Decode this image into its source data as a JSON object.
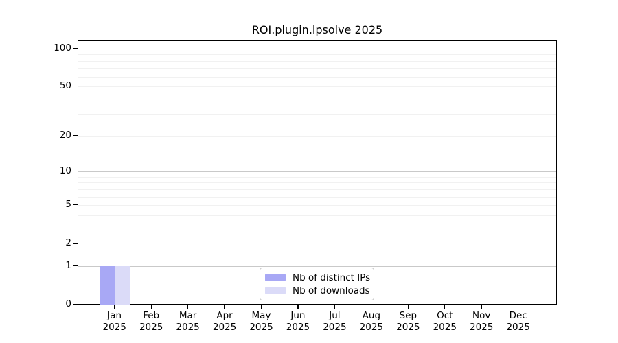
{
  "chart_data": {
    "type": "bar",
    "title": "ROI.plugin.lpsolve 2025",
    "y_scale": "log1p",
    "ylim": [
      0,
      115
    ],
    "grid": true,
    "legend_position": "bottom-center",
    "y_ticks": [
      0,
      1,
      2,
      5,
      10,
      20,
      50,
      100
    ],
    "y_gridlines_minor": [
      2,
      3,
      4,
      5,
      6,
      7,
      8,
      9,
      20,
      30,
      40,
      50,
      60,
      70,
      80,
      90
    ],
    "y_gridlines_major": [
      1,
      10,
      100
    ],
    "categories": [
      {
        "month": "Jan",
        "year": "2025"
      },
      {
        "month": "Feb",
        "year": "2025"
      },
      {
        "month": "Mar",
        "year": "2025"
      },
      {
        "month": "Apr",
        "year": "2025"
      },
      {
        "month": "May",
        "year": "2025"
      },
      {
        "month": "Jun",
        "year": "2025"
      },
      {
        "month": "Jul",
        "year": "2025"
      },
      {
        "month": "Aug",
        "year": "2025"
      },
      {
        "month": "Sep",
        "year": "2025"
      },
      {
        "month": "Oct",
        "year": "2025"
      },
      {
        "month": "Nov",
        "year": "2025"
      },
      {
        "month": "Dec",
        "year": "2025"
      }
    ],
    "series": [
      {
        "name": "Nb of distinct IPs",
        "color": "#a8a8f5",
        "values": [
          1,
          0,
          0,
          0,
          0,
          0,
          0,
          0,
          0,
          0,
          0,
          0
        ]
      },
      {
        "name": "Nb of downloads",
        "color": "#dbdbf8",
        "values": [
          1,
          0,
          0,
          0,
          0,
          0,
          0,
          0,
          0,
          0,
          0,
          0
        ]
      }
    ],
    "colors": {
      "axis": "#000000",
      "gridline_major": "#c9c9c9",
      "gridline_minor": "#f1f1f1",
      "legend_border": "#cbcbcb"
    }
  }
}
